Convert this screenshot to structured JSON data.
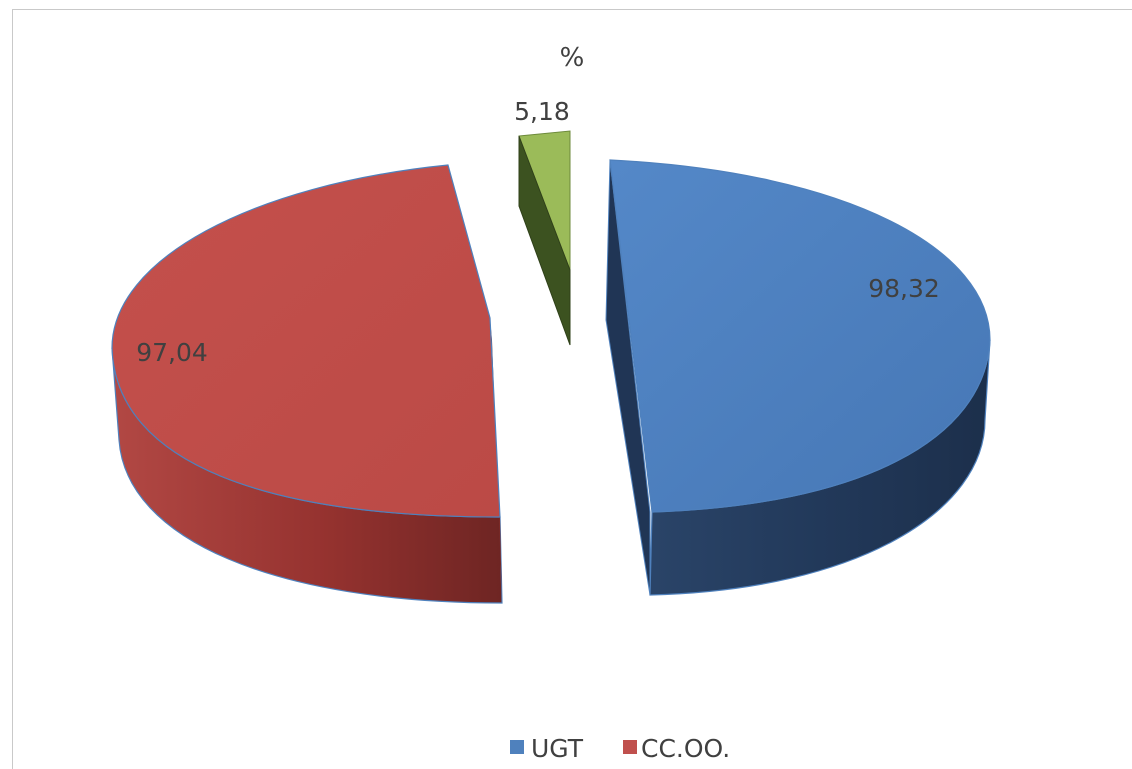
{
  "chart_data": {
    "type": "pie",
    "title": "%",
    "style": "3d-exploded",
    "slices": [
      {
        "label": "UGT",
        "value": 98.32,
        "display": "98,32",
        "color": "#4f81bd"
      },
      {
        "label": "CC.OO.",
        "value": 97.04,
        "display": "97,04",
        "color": "#c0504d"
      },
      {
        "label": "",
        "value": 5.18,
        "display": "5,18",
        "color": "#9bbb59"
      }
    ],
    "legend": {
      "position": "bottom",
      "entries": [
        {
          "label": "UGT",
          "color": "#4f81bd"
        },
        {
          "label": "CC.OO.",
          "color": "#c0504d"
        }
      ]
    }
  }
}
